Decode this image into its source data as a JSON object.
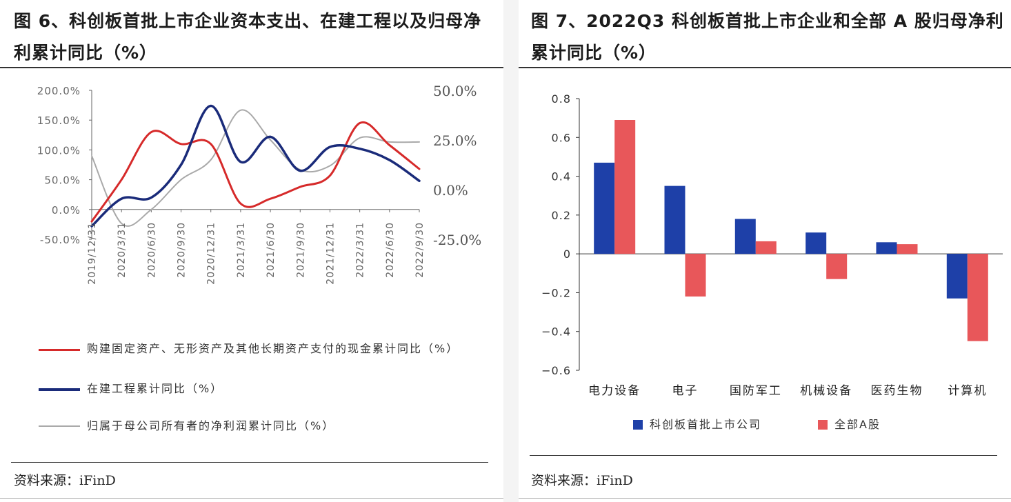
{
  "left": {
    "title": "图 6、科创板首批上市企业资本支出、在建工程以及归母净利累计同比（%）",
    "source_label": "资料来源：",
    "source_name": "iFinD",
    "chart_data": {
      "type": "line",
      "x": [
        "2019/12/31",
        "2020/3/31",
        "2020/6/30",
        "2020/9/30",
        "2020/12/31",
        "2021/3/31",
        "2021/6/30",
        "2021/9/30",
        "2021/12/31",
        "2022/3/31",
        "2022/6/30",
        "2022/9/30"
      ],
      "x_tick_labels": [
        "2019/12/31",
        "2020/3/31",
        "2020/6/30",
        "2020/9/30",
        "2020/12/31",
        "2021/3/31",
        "2021/6/30",
        "2021/9/30",
        "2021/12/31",
        "2022/3/31",
        "2022/6/30",
        "2022/9/30"
      ],
      "y_left_ticks": [
        "200.0%",
        "150.0%",
        "100.0%",
        "50.0%",
        "0.0%",
        "-50.0%"
      ],
      "y_right_ticks": [
        "50.0%",
        "25.0%",
        "0.0%",
        "-25.0%"
      ],
      "y_left_range": [
        -50,
        200
      ],
      "y_right_range": [
        -25,
        50
      ],
      "series": [
        {
          "name": "购建固定资产、无形资产及其他长期资产支付的现金累计同比（%）",
          "axis": "left",
          "color": "#d62a2a",
          "values": [
            -20,
            50,
            130,
            110,
            110,
            10,
            18,
            38,
            57,
            145,
            108,
            68
          ]
        },
        {
          "name": "在建工程累计同比（%）",
          "axis": "left",
          "color": "#1a2b7a",
          "values": [
            -28,
            18,
            20,
            75,
            174,
            80,
            122,
            65,
            105,
            102,
            83,
            48
          ]
        },
        {
          "name": "归属于母公司所有者的净利润累计同比（%）",
          "axis": "right",
          "color": "#a9a9a9",
          "values": [
            17,
            -17,
            -10,
            5,
            15,
            40,
            25,
            10,
            12,
            26,
            24,
            24
          ]
        }
      ]
    }
  },
  "right": {
    "title": "图 7、2022Q3 科创板首批上市企业和全部 A 股归母净利累计同比（%）",
    "source_label": "资料来源：",
    "source_name": "iFinD",
    "chart_data": {
      "type": "bar",
      "categories": [
        "电力设备",
        "电子",
        "国防军工",
        "机械设备",
        "医药生物",
        "计算机"
      ],
      "series": [
        {
          "name": "科创板首批上市公司",
          "color": "#1e40a8",
          "values": [
            0.47,
            0.35,
            0.18,
            0.11,
            0.06,
            -0.23
          ]
        },
        {
          "name": "全部A股",
          "color": "#e8575a",
          "values": [
            0.69,
            -0.22,
            0.065,
            -0.13,
            0.05,
            -0.45
          ]
        }
      ],
      "y_ticks": [
        "0.8",
        "0.6",
        "0.4",
        "0.2",
        "0",
        "−0.2",
        "−0.4",
        "−0.6"
      ],
      "ylim": [
        -0.6,
        0.8
      ]
    }
  }
}
